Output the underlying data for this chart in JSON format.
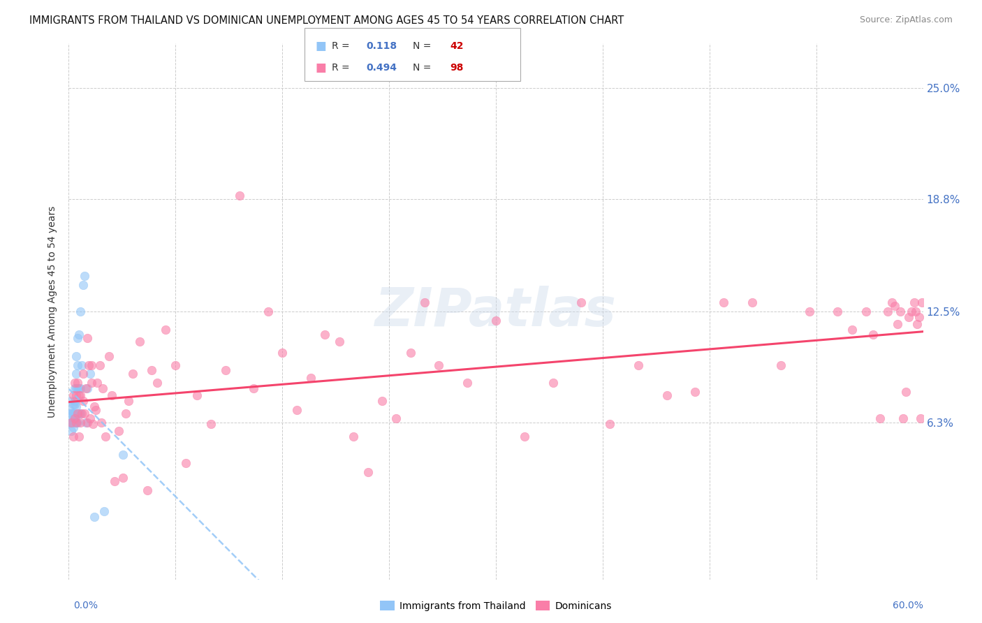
{
  "title": "IMMIGRANTS FROM THAILAND VS DOMINICAN UNEMPLOYMENT AMONG AGES 45 TO 54 YEARS CORRELATION CHART",
  "source": "Source: ZipAtlas.com",
  "ylabel": "Unemployment Among Ages 45 to 54 years",
  "ytick_labels": [
    "25.0%",
    "18.8%",
    "12.5%",
    "6.3%"
  ],
  "ytick_values": [
    0.25,
    0.188,
    0.125,
    0.063
  ],
  "xlim": [
    0.0,
    0.6
  ],
  "ylim": [
    -0.025,
    0.275
  ],
  "thailand_R": 0.118,
  "thailand_N": 42,
  "dominican_R": 0.494,
  "dominican_N": 98,
  "thailand_color": "#92C5F7",
  "dominican_color": "#F97EA8",
  "thailand_line_color": "#92C5F7",
  "dominican_line_color": "#F4446C",
  "background_color": "#FFFFFF",
  "watermark": "ZIPatlas",
  "thailand_x": [
    0.0005,
    0.001,
    0.001,
    0.001,
    0.0015,
    0.002,
    0.002,
    0.002,
    0.003,
    0.003,
    0.003,
    0.003,
    0.003,
    0.004,
    0.004,
    0.004,
    0.004,
    0.004,
    0.005,
    0.005,
    0.005,
    0.005,
    0.005,
    0.006,
    0.006,
    0.006,
    0.006,
    0.007,
    0.007,
    0.007,
    0.008,
    0.008,
    0.008,
    0.009,
    0.01,
    0.011,
    0.012,
    0.013,
    0.015,
    0.018,
    0.025,
    0.038
  ],
  "thailand_y": [
    0.063,
    0.063,
    0.07,
    0.075,
    0.068,
    0.058,
    0.063,
    0.068,
    0.06,
    0.063,
    0.065,
    0.068,
    0.073,
    0.063,
    0.068,
    0.073,
    0.082,
    0.075,
    0.063,
    0.072,
    0.082,
    0.09,
    0.1,
    0.063,
    0.082,
    0.095,
    0.11,
    0.068,
    0.082,
    0.112,
    0.068,
    0.082,
    0.125,
    0.095,
    0.14,
    0.145,
    0.063,
    0.082,
    0.09,
    0.01,
    0.013,
    0.045
  ],
  "dominican_x": [
    0.002,
    0.003,
    0.003,
    0.004,
    0.004,
    0.005,
    0.005,
    0.006,
    0.006,
    0.007,
    0.007,
    0.008,
    0.008,
    0.009,
    0.01,
    0.01,
    0.011,
    0.012,
    0.013,
    0.013,
    0.014,
    0.015,
    0.016,
    0.016,
    0.017,
    0.018,
    0.019,
    0.02,
    0.022,
    0.023,
    0.024,
    0.026,
    0.028,
    0.03,
    0.032,
    0.035,
    0.038,
    0.04,
    0.042,
    0.045,
    0.05,
    0.055,
    0.058,
    0.062,
    0.068,
    0.075,
    0.082,
    0.09,
    0.1,
    0.11,
    0.12,
    0.13,
    0.14,
    0.15,
    0.16,
    0.17,
    0.18,
    0.19,
    0.2,
    0.21,
    0.22,
    0.23,
    0.24,
    0.25,
    0.26,
    0.28,
    0.3,
    0.32,
    0.34,
    0.36,
    0.38,
    0.4,
    0.42,
    0.44,
    0.46,
    0.48,
    0.5,
    0.52,
    0.54,
    0.55,
    0.56,
    0.565,
    0.57,
    0.575,
    0.578,
    0.58,
    0.582,
    0.584,
    0.586,
    0.588,
    0.59,
    0.592,
    0.594,
    0.595,
    0.596,
    0.597,
    0.598,
    0.599
  ],
  "dominican_y": [
    0.063,
    0.055,
    0.078,
    0.065,
    0.085,
    0.063,
    0.078,
    0.068,
    0.085,
    0.055,
    0.078,
    0.063,
    0.078,
    0.068,
    0.075,
    0.09,
    0.068,
    0.082,
    0.11,
    0.063,
    0.095,
    0.065,
    0.085,
    0.095,
    0.062,
    0.072,
    0.07,
    0.085,
    0.095,
    0.063,
    0.082,
    0.055,
    0.1,
    0.078,
    0.03,
    0.058,
    0.032,
    0.068,
    0.075,
    0.09,
    0.108,
    0.025,
    0.092,
    0.085,
    0.115,
    0.095,
    0.04,
    0.078,
    0.062,
    0.092,
    0.19,
    0.082,
    0.125,
    0.102,
    0.07,
    0.088,
    0.112,
    0.108,
    0.055,
    0.035,
    0.075,
    0.065,
    0.102,
    0.13,
    0.095,
    0.085,
    0.12,
    0.055,
    0.085,
    0.13,
    0.062,
    0.095,
    0.078,
    0.08,
    0.13,
    0.13,
    0.095,
    0.125,
    0.125,
    0.115,
    0.125,
    0.112,
    0.065,
    0.125,
    0.13,
    0.128,
    0.118,
    0.125,
    0.065,
    0.08,
    0.122,
    0.125,
    0.13,
    0.125,
    0.118,
    0.122,
    0.065,
    0.13
  ]
}
